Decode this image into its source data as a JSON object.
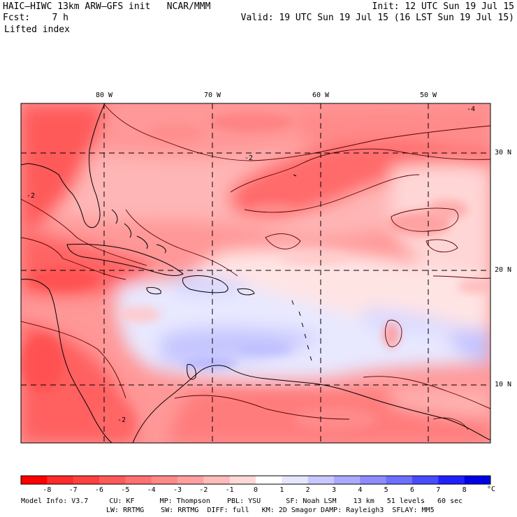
{
  "header": {
    "title": "HAIC–HIWC 13km ARW–GFS init   NCAR/MMM",
    "init": "Init: 12 UTC Sun 19 Jul 15",
    "fcst_label": "Fcst:    7 h",
    "valid": "Valid: 19 UTC Sun 19 Jul 15 (16 LST Sun 19 Jul 15)",
    "field": "Lifted index"
  },
  "map": {
    "lon_labels": [
      "80 W",
      "70 W",
      "60 W",
      "50 W"
    ],
    "lat_labels": [
      "30 N",
      "20 N",
      "10 N"
    ],
    "contour_labels": [
      "-2",
      "-4",
      "-2",
      "-2"
    ],
    "colors": {
      "land_outline": "#000000",
      "grid": "#000000"
    }
  },
  "colorbar": {
    "labels": [
      "-8",
      "-7",
      "-6",
      "-5",
      "-4",
      "-3",
      "-2",
      "-1",
      "0",
      "1",
      "2",
      "3",
      "4",
      "5",
      "6",
      "7",
      "8"
    ],
    "unit": "°C",
    "colors": [
      "#ff0000",
      "#ff2a2a",
      "#ff4040",
      "#ff5a5a",
      "#ff7070",
      "#ff8888",
      "#ffa0a0",
      "#ffbaba",
      "#ffd8d8",
      "#ffffff",
      "#e6e6ff",
      "#c8c8ff",
      "#aaaaff",
      "#8c8cff",
      "#6e6eff",
      "#4a4aff",
      "#2020ff",
      "#0000e6"
    ]
  },
  "footer": {
    "line1": "Model Info: V3.7     CU: KF      MP: Thompson    PBL: YSU      SF: Noah LSM    13 km   51 levels   60 sec",
    "line2": "LW: RRTMG    SW: RRTMG  DIFF: full   KM: 2D Smagor DAMP: Rayleigh3  SFLAY: MM5"
  }
}
